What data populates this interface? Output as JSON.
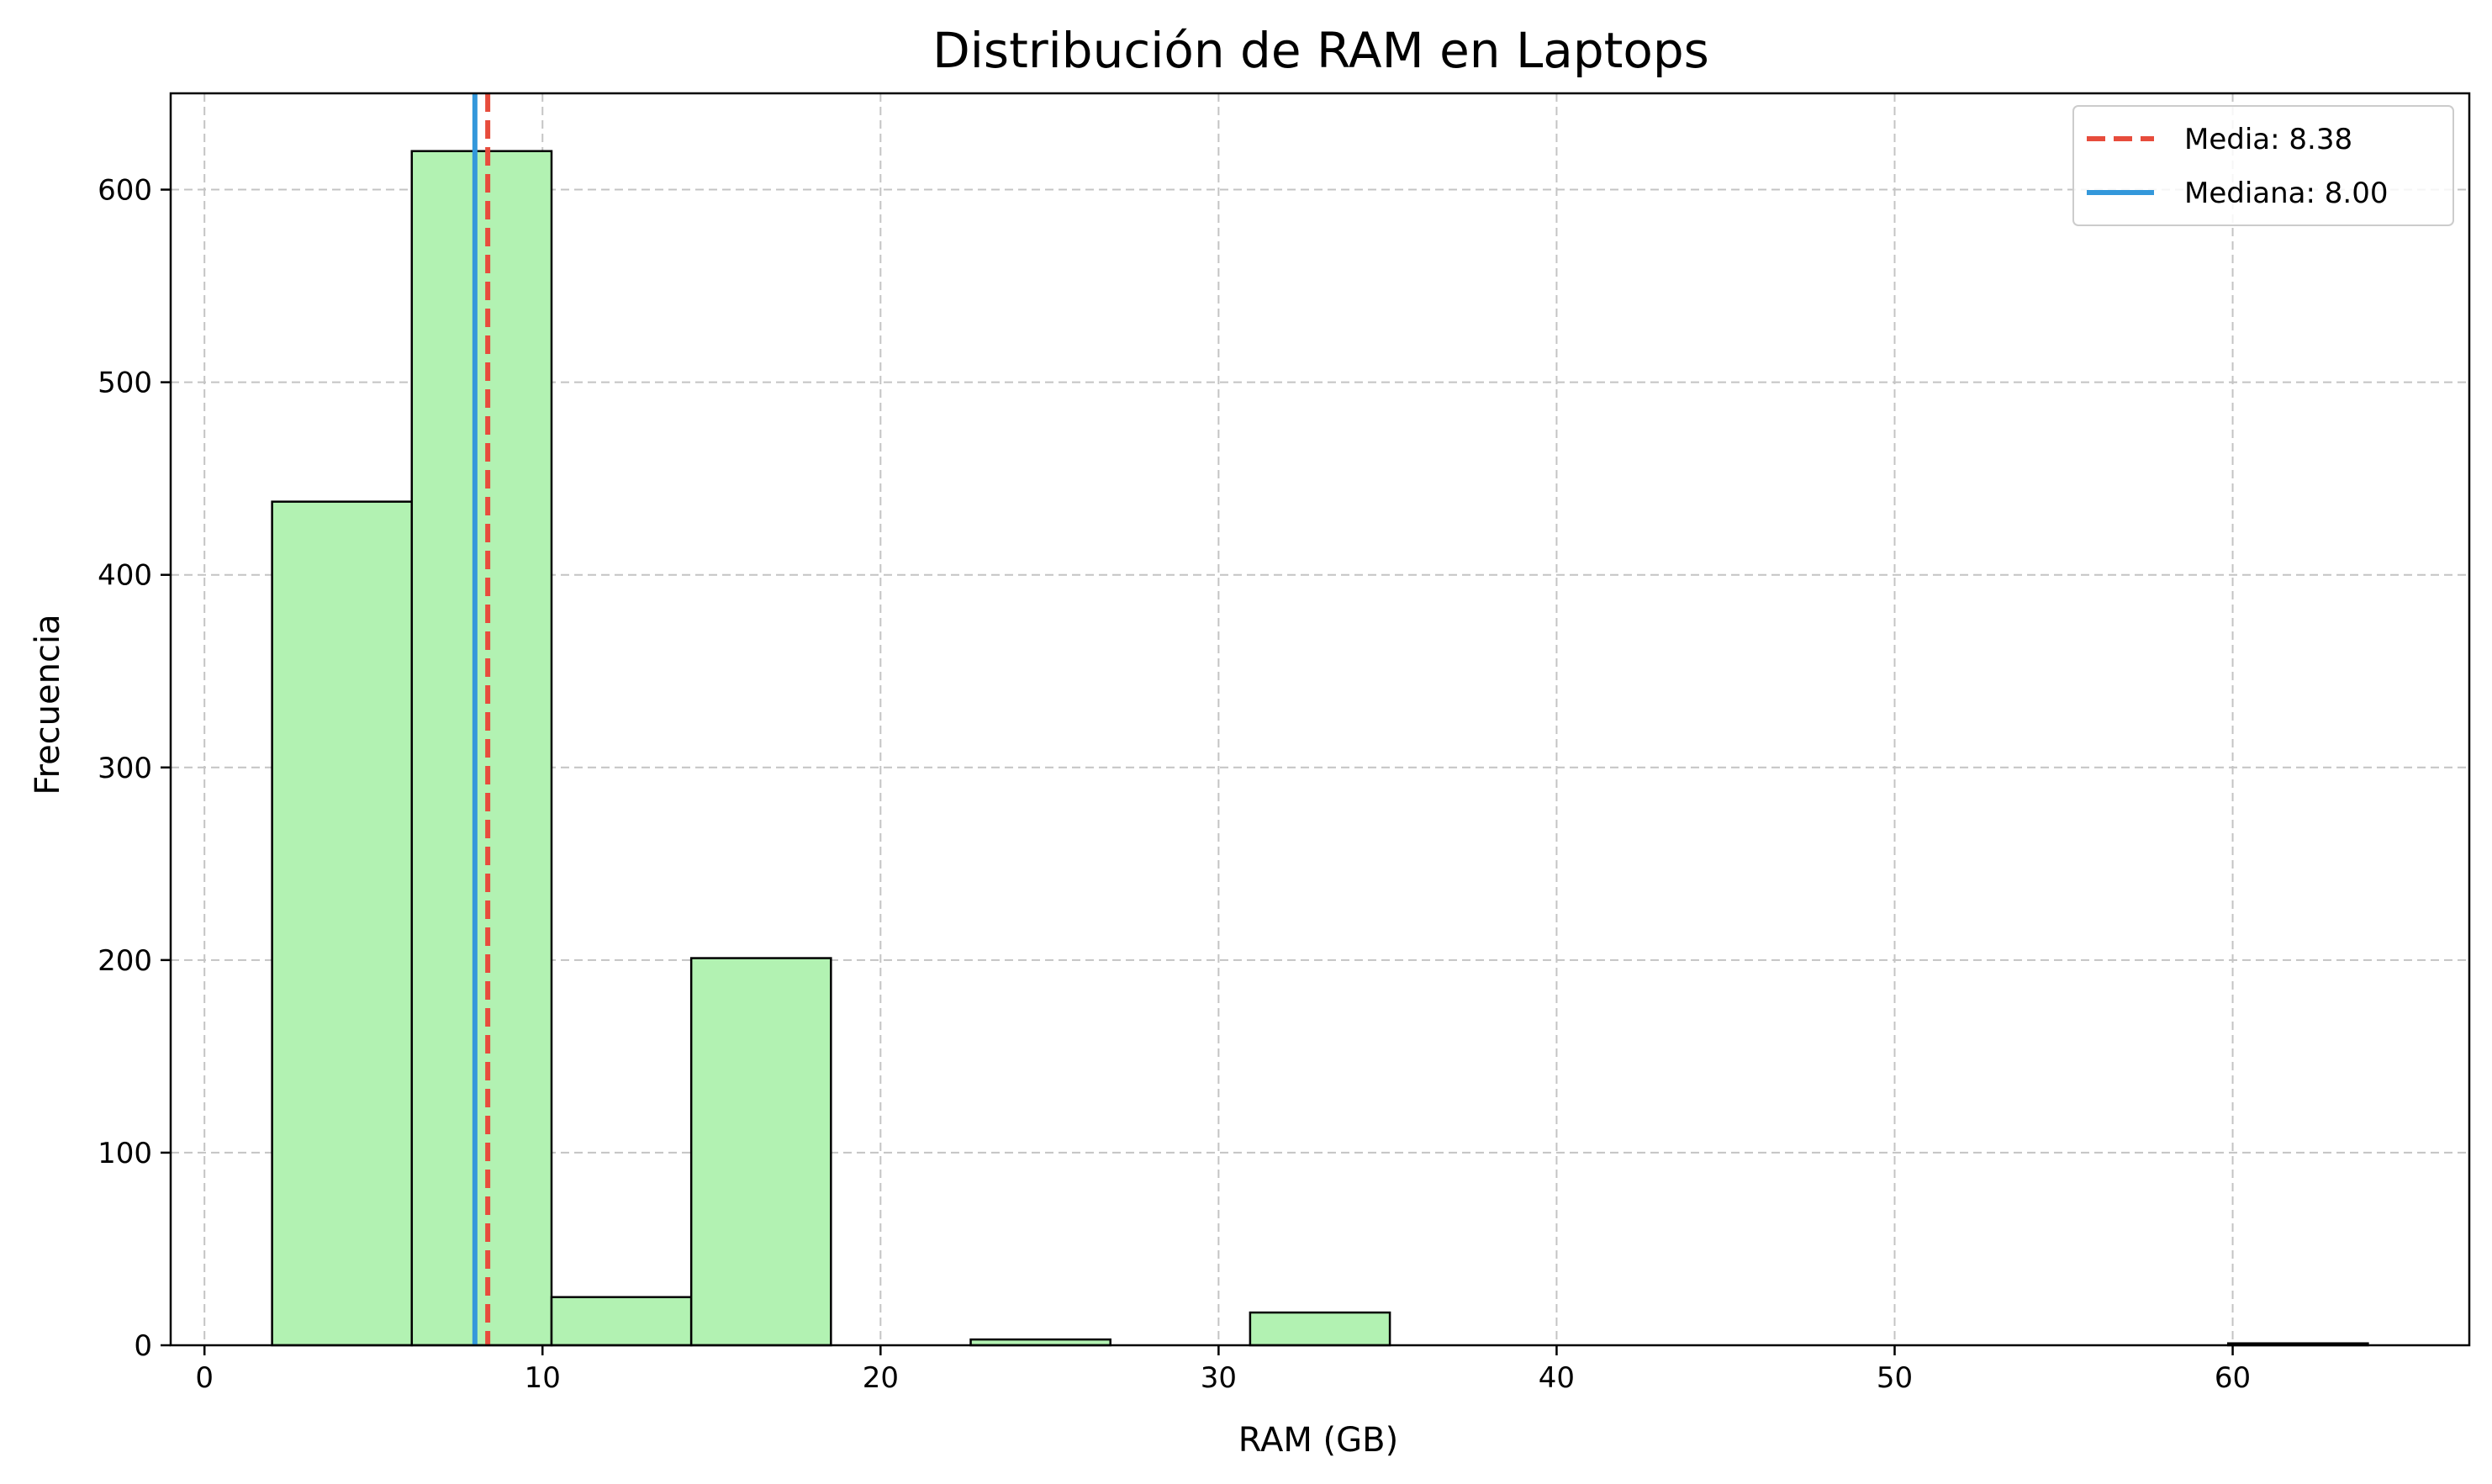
{
  "chart_data": {
    "type": "bar",
    "title": "Distribución de RAM en Laptops",
    "xlabel": "RAM (GB)",
    "ylabel": "Frecuencia",
    "xlim": [
      -1,
      67
    ],
    "ylim": [
      0,
      650
    ],
    "xticks": [
      0,
      10,
      20,
      30,
      40,
      50,
      60
    ],
    "yticks": [
      0,
      100,
      200,
      300,
      400,
      500,
      600
    ],
    "grid": true,
    "legend_position": "top-right",
    "bin_color": "#b2f2b2",
    "bin_edge_color": "#000000",
    "bins": [
      {
        "start": 2.0,
        "end": 6.133,
        "count": 438
      },
      {
        "start": 6.133,
        "end": 10.267,
        "count": 620
      },
      {
        "start": 10.267,
        "end": 14.4,
        "count": 25
      },
      {
        "start": 14.4,
        "end": 18.533,
        "count": 201
      },
      {
        "start": 18.533,
        "end": 22.667,
        "count": 0
      },
      {
        "start": 22.667,
        "end": 26.8,
        "count": 3
      },
      {
        "start": 26.8,
        "end": 30.933,
        "count": 0
      },
      {
        "start": 30.933,
        "end": 35.067,
        "count": 17
      },
      {
        "start": 35.067,
        "end": 39.2,
        "count": 0
      },
      {
        "start": 39.2,
        "end": 43.333,
        "count": 0
      },
      {
        "start": 43.333,
        "end": 47.467,
        "count": 0
      },
      {
        "start": 47.467,
        "end": 51.6,
        "count": 0
      },
      {
        "start": 51.6,
        "end": 55.733,
        "count": 0
      },
      {
        "start": 55.733,
        "end": 59.867,
        "count": 0
      },
      {
        "start": 59.867,
        "end": 64.0,
        "count": 1
      }
    ],
    "reference_lines": [
      {
        "name": "Media",
        "label": "Media: 8.38",
        "value": 8.38,
        "color": "#e74c3c",
        "style": "dashed"
      },
      {
        "name": "Mediana",
        "label": "Mediana: 8.00",
        "value": 8.0,
        "color": "#3498db",
        "style": "solid"
      }
    ]
  }
}
